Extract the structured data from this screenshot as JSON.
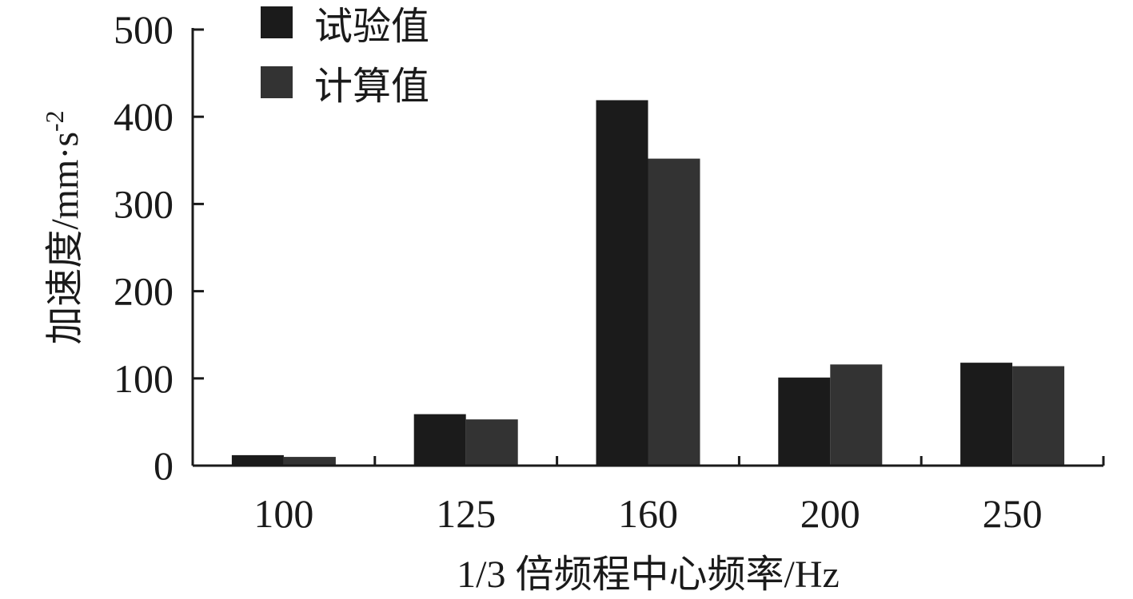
{
  "chart_data": {
    "type": "bar",
    "categories": [
      "100",
      "125",
      "160",
      "200",
      "250"
    ],
    "series": [
      {
        "name": "试验值",
        "color": "#1b1b1b",
        "values": [
          12,
          59,
          419,
          101,
          118
        ]
      },
      {
        "name": "计算值",
        "color": "#333333",
        "values": [
          10,
          53,
          352,
          116,
          114
        ]
      }
    ],
    "xlabel": "1/3 倍频程中心频率/Hz",
    "ylabel": "加速度/mm·s",
    "ylabel_superscript": "-2",
    "ylim": [
      0,
      500
    ],
    "yticks": [
      "0",
      "100",
      "200",
      "300",
      "400",
      "500"
    ],
    "grid": false,
    "legend_position": "top-left"
  }
}
